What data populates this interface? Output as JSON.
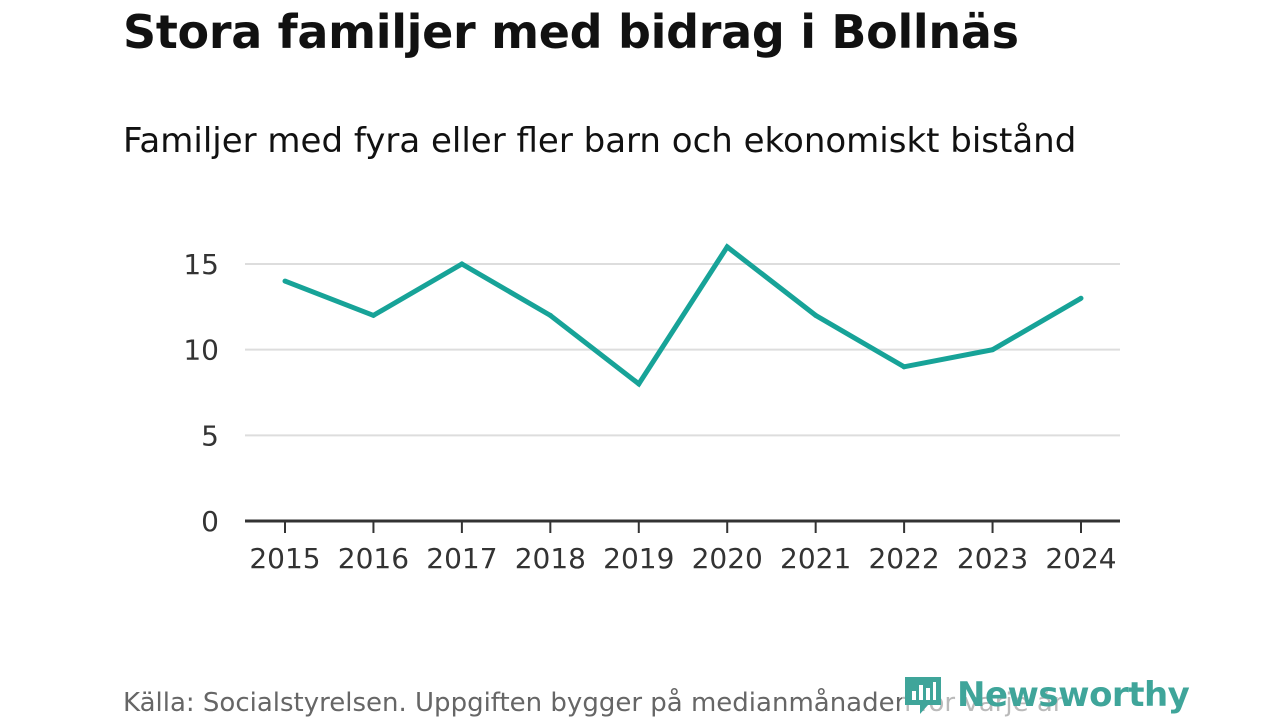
{
  "header": {
    "title": "Stora familjer med bidrag i Bollnäs",
    "subtitle": "Familjer med fyra eller fler barn och ekonomiskt bistånd"
  },
  "chart_data": {
    "type": "line",
    "title": "Stora familjer med bidrag i Bollnäs",
    "subtitle": "Familjer med fyra eller fler barn och ekonomiskt bistånd",
    "categories": [
      "2015",
      "2016",
      "2017",
      "2018",
      "2019",
      "2020",
      "2021",
      "2022",
      "2023",
      "2024"
    ],
    "series": [
      {
        "name": "Familjer med fyra eller fler barn och ekonomiskt bistånd",
        "values": [
          14,
          12,
          15,
          12,
          8,
          16,
          12,
          9,
          10,
          13
        ]
      }
    ],
    "ylim": [
      0,
      15
    ],
    "yticks": [
      "0",
      "5",
      "10",
      "15"
    ],
    "xlabel": "",
    "ylabel": "",
    "grid": true,
    "legend": "none",
    "line_color": "#17a398",
    "grid_color": "#dddddd",
    "axis_color": "#333333"
  },
  "footer": {
    "source": "Källa: Socialstyrelsen. Uppgiften bygger på medianmånaden för varje år",
    "brand": "Newsworthy",
    "brand_color": "#3fa59a",
    "brand_icon": "newsworthy-logo-icon"
  }
}
